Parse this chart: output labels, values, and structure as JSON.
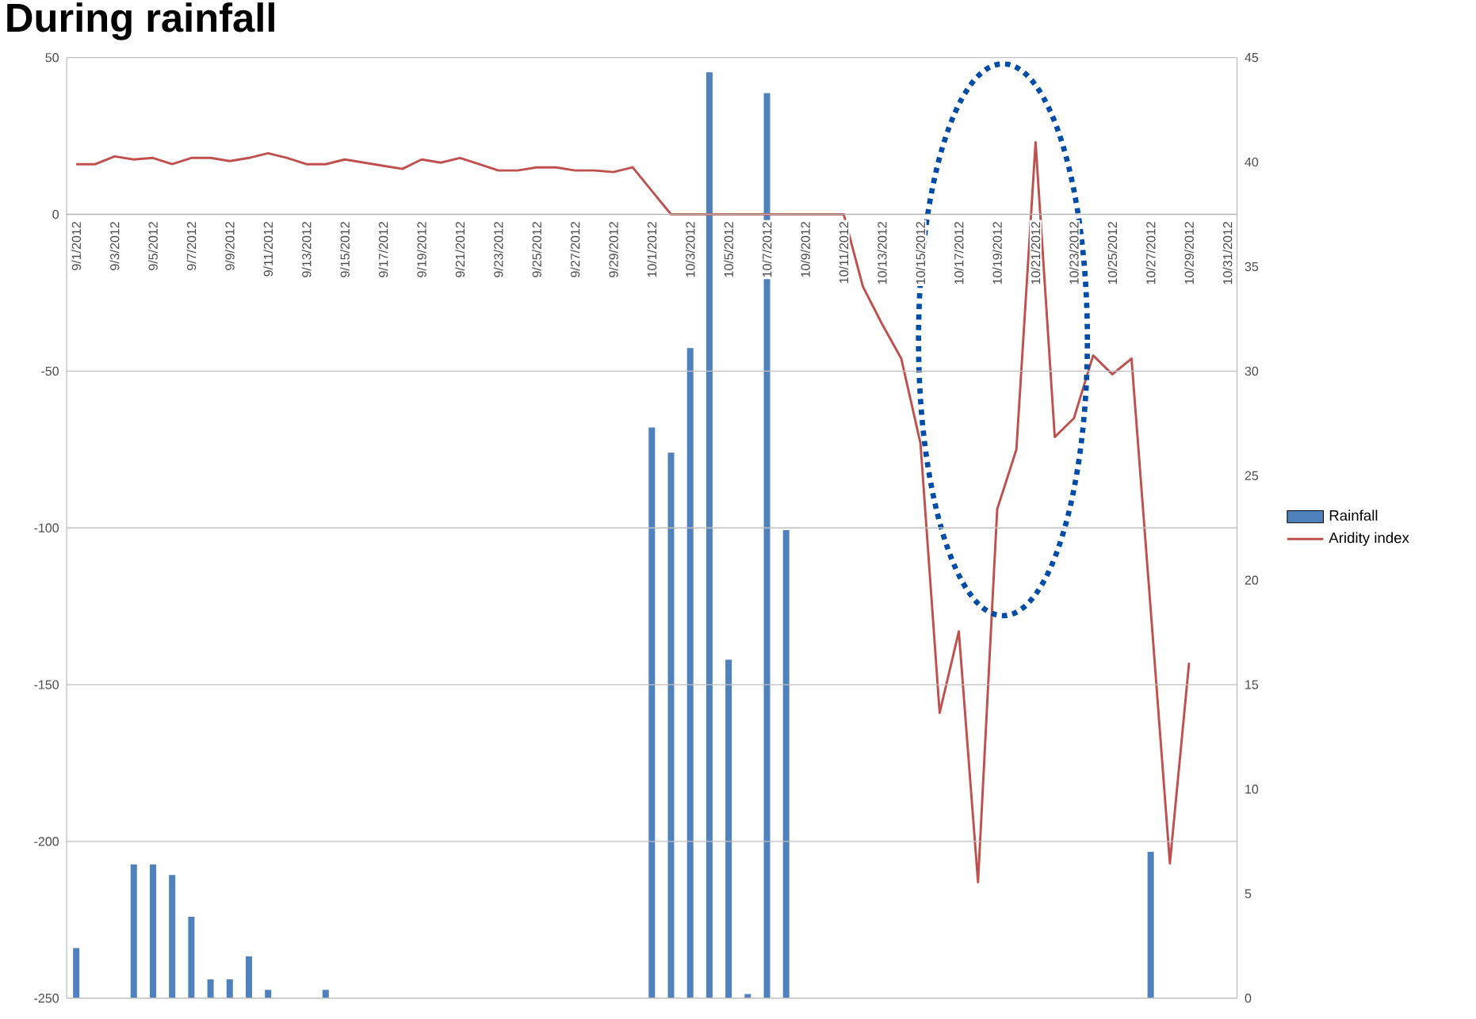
{
  "chart_data": {
    "type": "line",
    "title": "During rainfall",
    "categories": [
      "9/1/2012",
      null,
      "9/3/2012",
      null,
      "9/5/2012",
      null,
      "9/7/2012",
      null,
      "9/9/2012",
      null,
      "9/11/2012",
      null,
      "9/13/2012",
      null,
      "9/15/2012",
      null,
      "9/17/2012",
      null,
      "9/19/2012",
      null,
      "9/21/2012",
      null,
      "9/23/2012",
      null,
      "9/25/2012",
      null,
      "9/27/2012",
      null,
      "9/29/2012",
      null,
      "10/1/2012",
      null,
      "10/3/2012",
      null,
      "10/5/2012",
      null,
      "10/7/2012",
      null,
      "10/9/2012",
      null,
      "10/11/2012",
      null,
      "10/13/2012",
      null,
      "10/15/2012",
      null,
      "10/17/2012",
      null,
      "10/19/2012",
      null,
      "10/21/2012",
      null,
      "10/23/2012",
      null,
      "10/25/2012",
      null,
      "10/27/2012",
      null,
      "10/29/2012",
      null,
      "10/31/2012"
    ],
    "series": [
      {
        "name": "Rainfall",
        "type": "bar",
        "axis": "y2",
        "color": "#4f81bd",
        "values": [
          2.4,
          null,
          null,
          6.4,
          6.4,
          5.9,
          3.9,
          0.9,
          0.9,
          2.0,
          0.4,
          null,
          null,
          0.4,
          null,
          null,
          null,
          null,
          null,
          null,
          null,
          null,
          null,
          null,
          null,
          null,
          null,
          null,
          null,
          null,
          27.3,
          26.1,
          31.1,
          44.3,
          16.2,
          0.2,
          43.3,
          22.4,
          null,
          null,
          null,
          null,
          null,
          null,
          null,
          null,
          null,
          null,
          null,
          null,
          null,
          null,
          null,
          null,
          null,
          null,
          7.0,
          null,
          null,
          null,
          null
        ]
      },
      {
        "name": "Aridity index",
        "color": "#c0504d",
        "values": [
          16,
          16,
          18.5,
          17.5,
          18,
          16,
          18,
          18,
          17,
          18,
          19.5,
          18,
          16,
          16,
          17.5,
          16.5,
          15.5,
          14.5,
          17.5,
          16.5,
          18,
          16,
          14,
          14,
          15,
          15,
          14,
          14,
          13.5,
          15,
          7.5,
          0,
          0,
          0,
          0,
          0,
          0,
          0,
          0,
          0,
          0,
          -23,
          -35,
          -46,
          -73,
          -159,
          -133,
          -213,
          -94,
          -75,
          23,
          -71,
          -65,
          -45,
          -51,
          -46,
          -126,
          -207,
          -143,
          null,
          null
        ]
      }
    ],
    "ylim": [
      -250,
      50
    ],
    "yticks": [
      -250,
      -200,
      -150,
      -100,
      -50,
      0,
      50
    ],
    "y2lim": [
      0,
      45
    ],
    "y2ticks": [
      0,
      5,
      10,
      15,
      20,
      25,
      30,
      35,
      40,
      45
    ],
    "grid": "y",
    "legend": "right"
  }
}
